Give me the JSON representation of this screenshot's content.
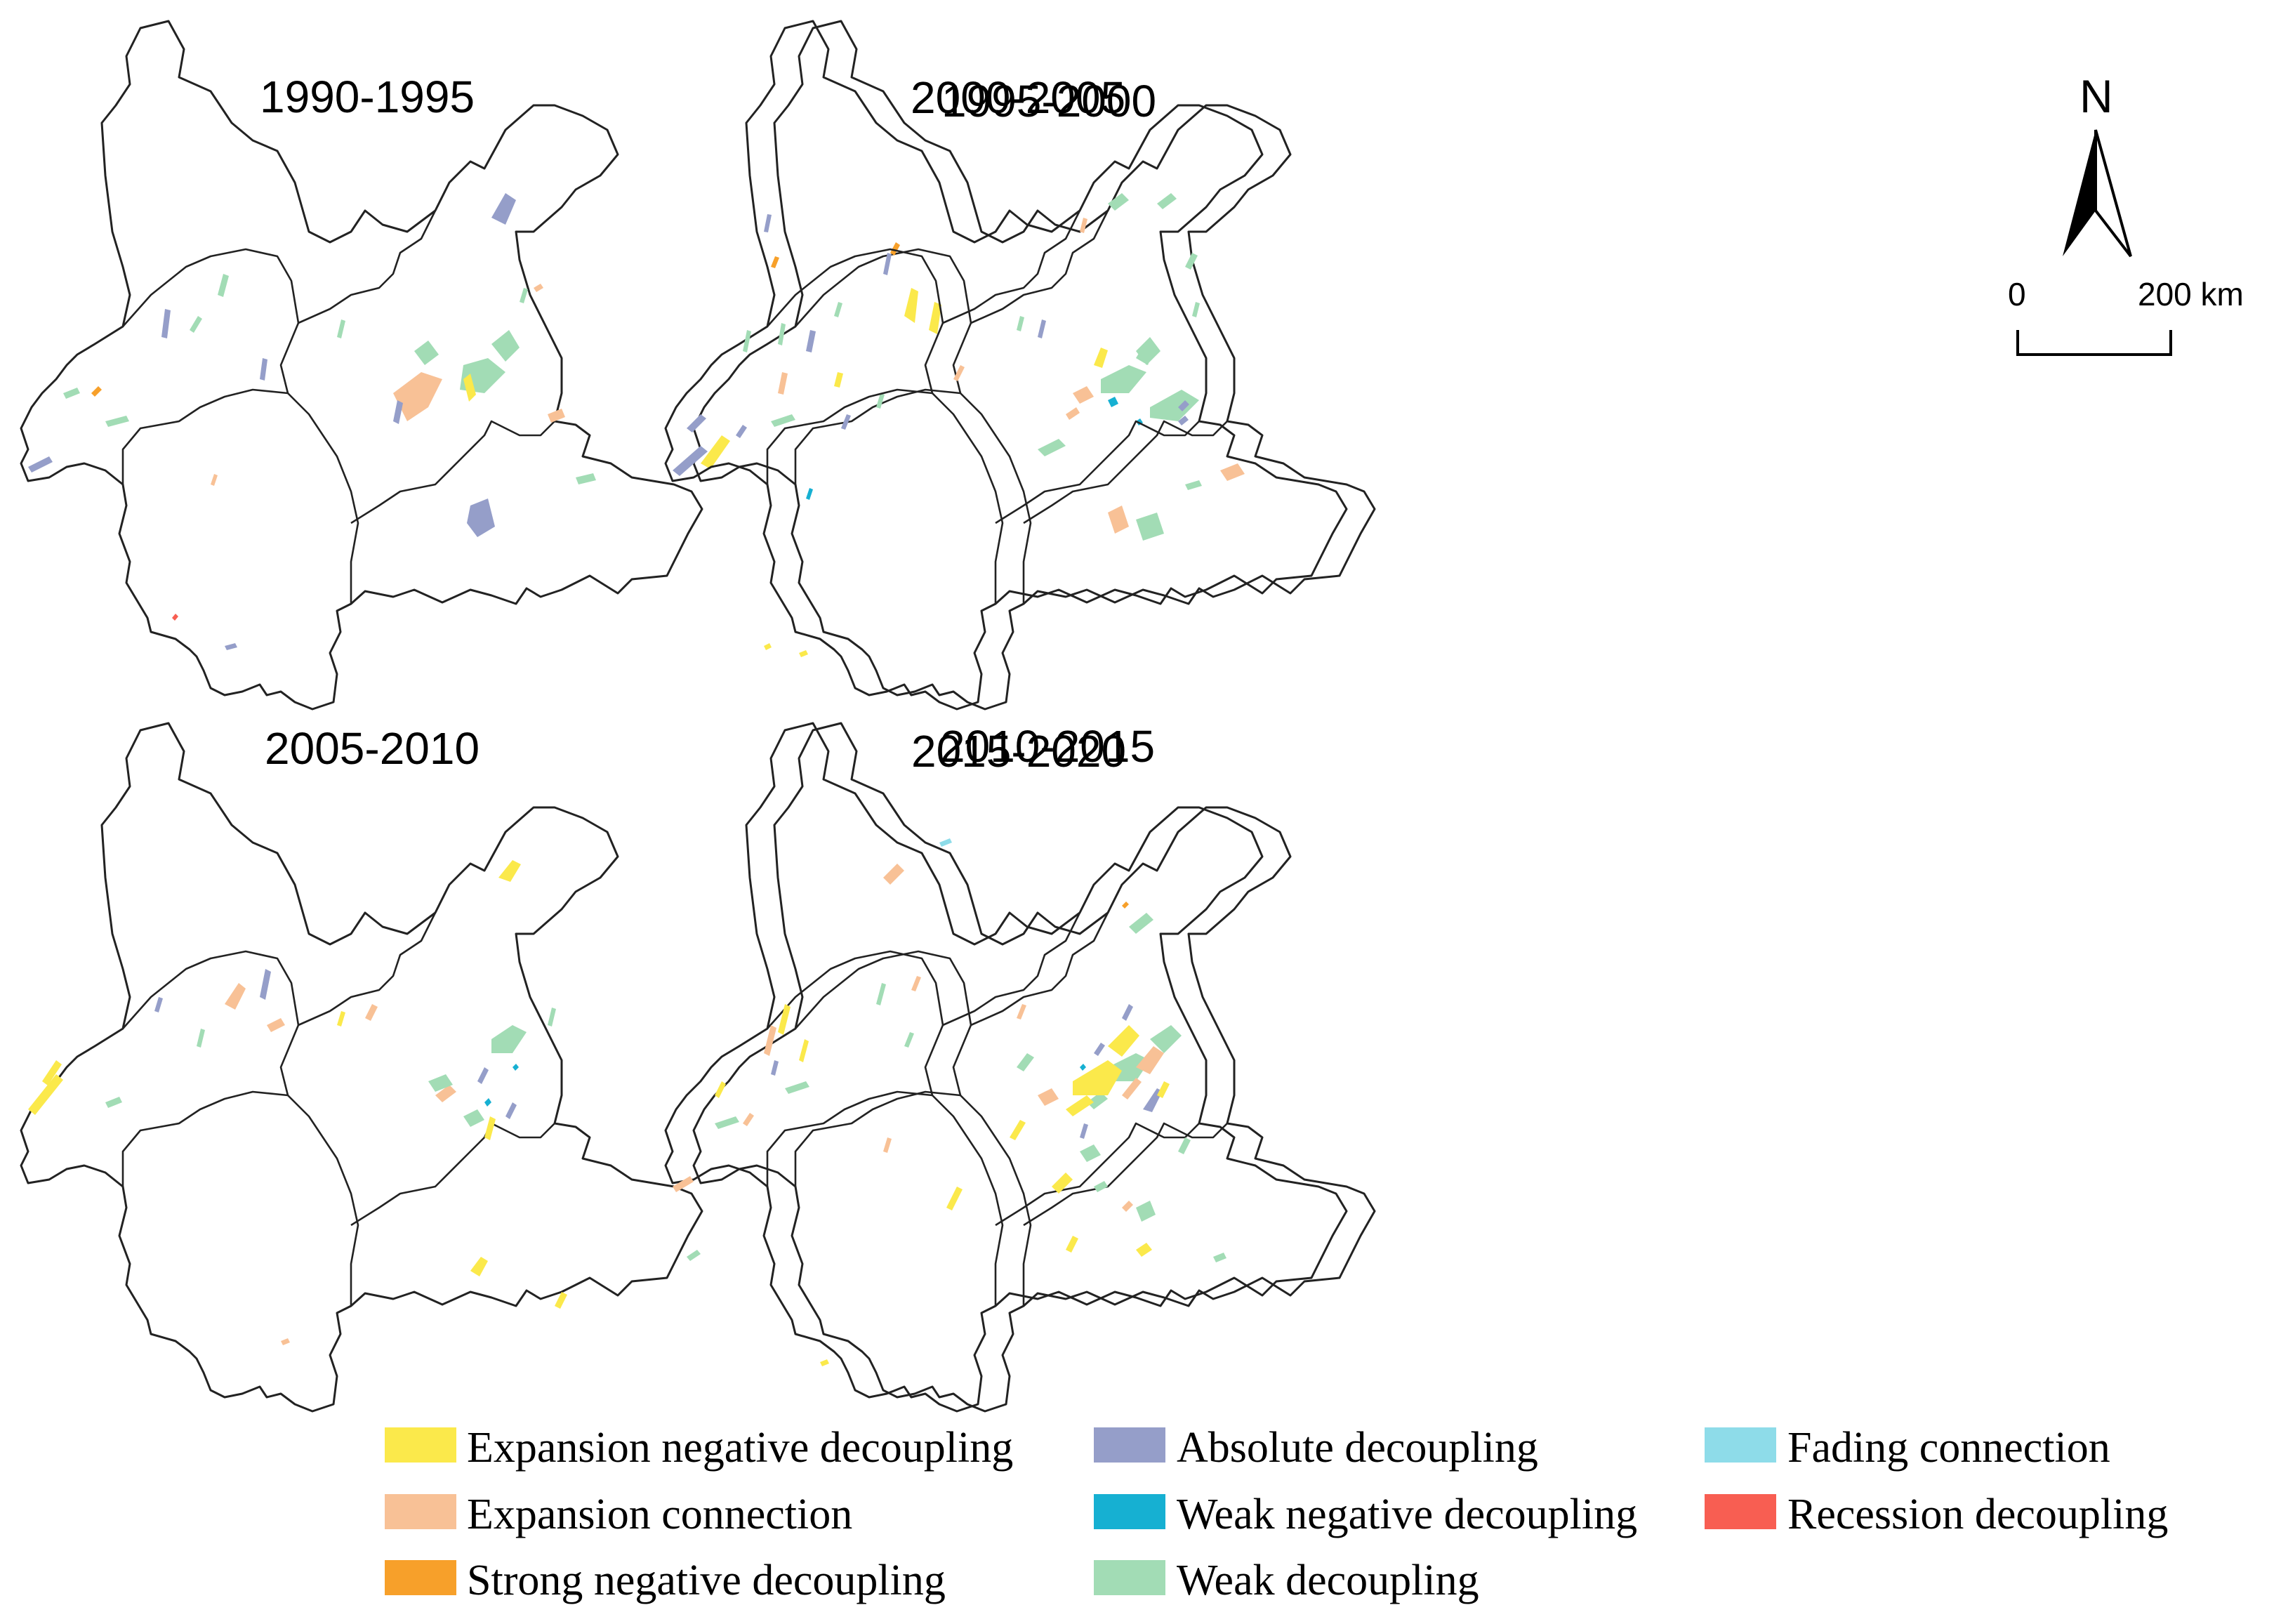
{
  "panels": [
    {
      "title": "1990-1995"
    },
    {
      "title": "1995-2000"
    },
    {
      "title": "2000-2005"
    },
    {
      "title": "2005-2010"
    },
    {
      "title": "2010-2015"
    },
    {
      "title": "2015-2020"
    }
  ],
  "north_arrow": {
    "label": "N"
  },
  "scale_bar": {
    "start_label": "0",
    "end_label": "200 km"
  },
  "legend": [
    {
      "label": "Expansion negative decoupling",
      "color": "#FBE94B"
    },
    {
      "label": "Expansion connection",
      "color": "#F8C196"
    },
    {
      "label": "Strong negative decoupling",
      "color": "#F7A02A"
    },
    {
      "label": "Absolute decoupling",
      "color": "#959EC9"
    },
    {
      "label": "Weak negative decoupling",
      "color": "#16B0D2"
    },
    {
      "label": "Weak decoupling",
      "color": "#A2DCB5"
    },
    {
      "label": "Fading connection",
      "color": "#8EDCE9"
    },
    {
      "label": "Recession decoupling",
      "color": "#F85E52"
    }
  ]
}
